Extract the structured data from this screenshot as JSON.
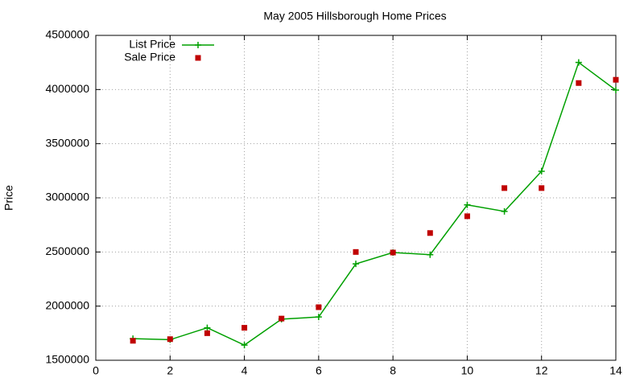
{
  "chart_data": {
    "type": "line",
    "title": "May 2005 Hillsborough Home Prices",
    "y_label": "Price",
    "x": [
      1,
      2,
      3,
      4,
      5,
      6,
      7,
      8,
      9,
      10,
      11,
      12,
      13,
      14
    ],
    "series": [
      {
        "name": "List Price",
        "color": "#00a000",
        "mode": "linespoints",
        "values": [
          1700000,
          1690000,
          1800000,
          1640000,
          1880000,
          1900000,
          2390000,
          2495000,
          2475000,
          2935000,
          2875000,
          3245000,
          4250000,
          3995000
        ]
      },
      {
        "name": "Sale Price",
        "color": "#c00000",
        "mode": "points",
        "values": [
          1680000,
          1695000,
          1750000,
          1800000,
          1885000,
          1990000,
          2500000,
          2495000,
          2675000,
          2830000,
          3090000,
          3090000,
          4060000,
          4090000
        ]
      }
    ],
    "xlim": [
      0,
      14
    ],
    "xticks": [
      0,
      2,
      4,
      6,
      8,
      10,
      12,
      14
    ],
    "ylim": [
      1500000,
      4500000
    ],
    "yticks": [
      1500000,
      2000000,
      2500000,
      3000000,
      3500000,
      4000000,
      4500000
    ],
    "grid": true,
    "legend": "top-left"
  }
}
